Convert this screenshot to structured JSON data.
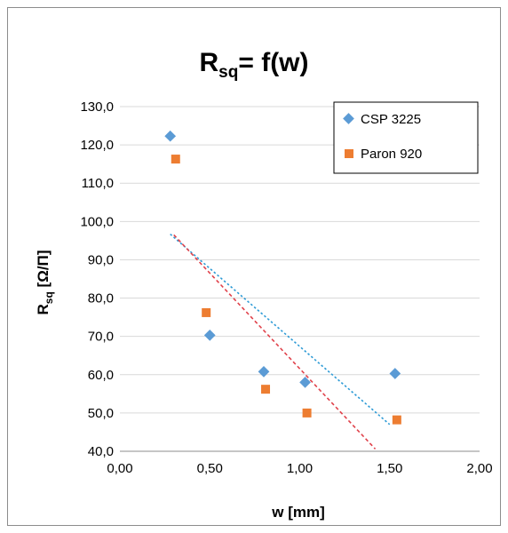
{
  "chart_data": {
    "type": "scatter",
    "title_main": "R",
    "title_sub": "sq",
    "title_rest": "= f(w)",
    "xlabel": "w [mm]",
    "ylabel_main": "R",
    "ylabel_sub": "sq",
    "ylabel_rest": " [Ω/Π]",
    "xlim": [
      0,
      2
    ],
    "ylim": [
      40,
      130
    ],
    "x_ticks": [
      "0,00",
      "0,50",
      "1,00",
      "1,50",
      "2,00"
    ],
    "y_ticks": [
      "40,0",
      "50,0",
      "60,0",
      "70,0",
      "80,0",
      "90,0",
      "100,0",
      "110,0",
      "120,0",
      "130,0"
    ],
    "grid": "horizontal",
    "legend_position": "top-right",
    "series": [
      {
        "name": "CSP 3225",
        "marker": "diamond",
        "color": "#5B9BD5",
        "x": [
          0.28,
          0.5,
          0.8,
          1.03,
          1.53
        ],
        "y": [
          122.3,
          70.3,
          60.8,
          58.0,
          60.3
        ],
        "trendline": {
          "color": "#2E9BD6",
          "x": [
            0.28,
            1.5
          ],
          "y": [
            96.7,
            47.0
          ]
        }
      },
      {
        "name": "Paron 920",
        "marker": "square",
        "color": "#ED7D31",
        "x": [
          0.31,
          0.48,
          0.81,
          1.04,
          1.54
        ],
        "y": [
          116.3,
          76.2,
          56.2,
          50.0,
          48.2
        ],
        "trendline": {
          "color": "#E0424B",
          "x": [
            0.3,
            1.42
          ],
          "y": [
            96.5,
            40.6
          ]
        }
      }
    ]
  }
}
